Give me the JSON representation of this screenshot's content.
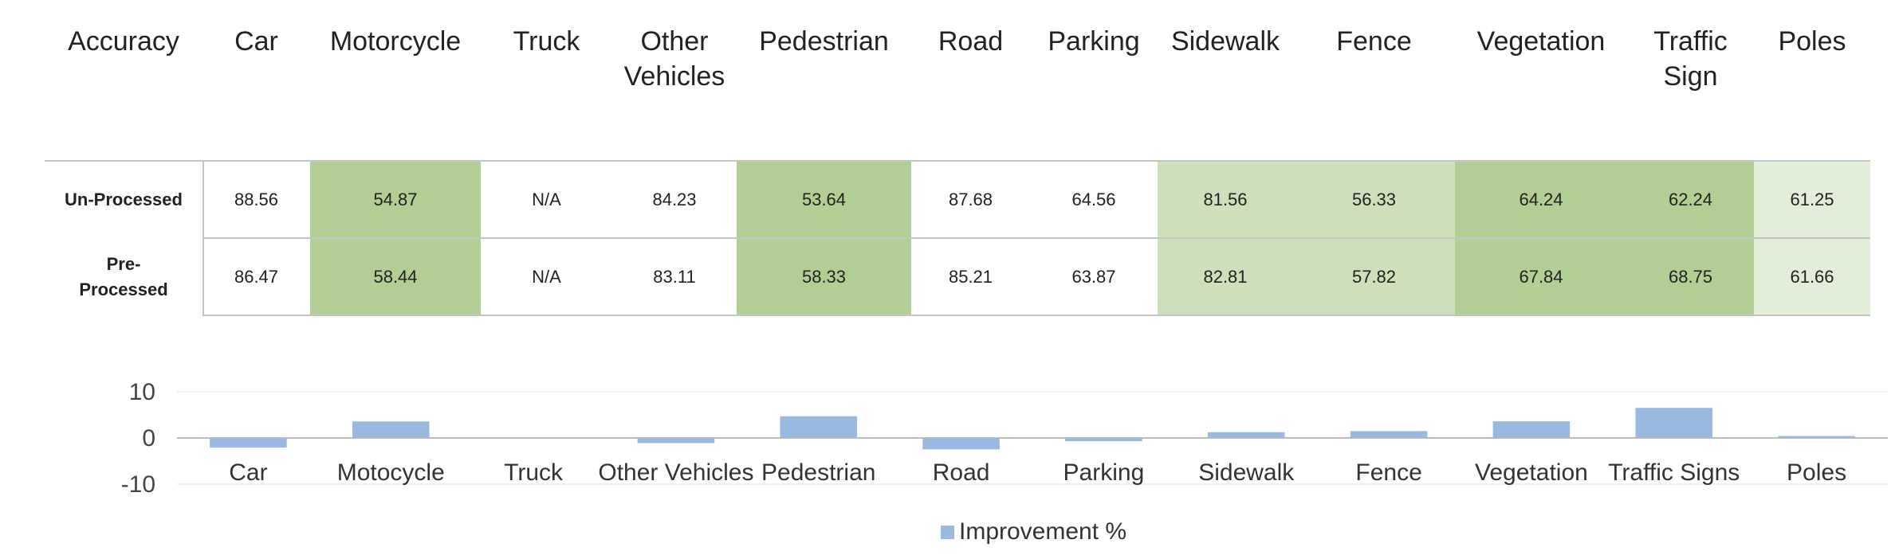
{
  "table": {
    "corner_label": "Accuracy",
    "columns": [
      {
        "lines": [
          "Car"
        ],
        "shade": "none"
      },
      {
        "lines": [
          "Motorcycle"
        ],
        "shade": "#b1cf95"
      },
      {
        "lines": [
          "Truck"
        ],
        "shade": "none"
      },
      {
        "lines": [
          "Other",
          "Vehicles"
        ],
        "shade": "none"
      },
      {
        "lines": [
          "Pedestrian"
        ],
        "shade": "#b1cf95"
      },
      {
        "lines": [
          "Road"
        ],
        "shade": "none"
      },
      {
        "lines": [
          "Parking"
        ],
        "shade": "none"
      },
      {
        "lines": [
          "Sidewalk"
        ],
        "shade": "#cde0bb"
      },
      {
        "lines": [
          "Fence"
        ],
        "shade": "#cde0bb"
      },
      {
        "lines": [
          "Vegetation"
        ],
        "shade": "#b1cf95"
      },
      {
        "lines": [
          "Traffic",
          "Sign"
        ],
        "shade": "#b1cf95"
      },
      {
        "lines": [
          "Poles"
        ],
        "shade": "#e3eed9"
      }
    ],
    "rows": [
      {
        "label_lines": [
          "Un-Processed"
        ],
        "values": [
          "88.56",
          "54.87",
          "N/A",
          "84.23",
          "53.64",
          "87.68",
          "64.56",
          "81.56",
          "56.33",
          "64.24",
          "62.24",
          "61.25"
        ]
      },
      {
        "label_lines": [
          "Pre-",
          "Processed"
        ],
        "values": [
          "86.47",
          "58.44",
          "N/A",
          "83.11",
          "58.33",
          "85.21",
          "63.87",
          "82.81",
          "57.82",
          "67.84",
          "68.75",
          "61.66"
        ]
      }
    ]
  },
  "chart_data": {
    "type": "bar",
    "categories": [
      "Car",
      "Motocycle",
      "Truck",
      "Other Vehicles",
      "Pedestrian",
      "Road",
      "Parking",
      "Sidewalk",
      "Fence",
      "Vegetation",
      "Traffic Signs",
      "Poles"
    ],
    "series": [
      {
        "name": "Improvement %",
        "values": [
          -2.09,
          3.57,
          0,
          -1.12,
          4.69,
          -2.47,
          -0.69,
          1.25,
          1.49,
          3.6,
          6.51,
          0.41
        ],
        "color": "#9ab9e0"
      }
    ],
    "yticks": [
      -10,
      0,
      10
    ],
    "ylim": [
      -10,
      10
    ],
    "grid": true,
    "legend_position": "bottom"
  }
}
